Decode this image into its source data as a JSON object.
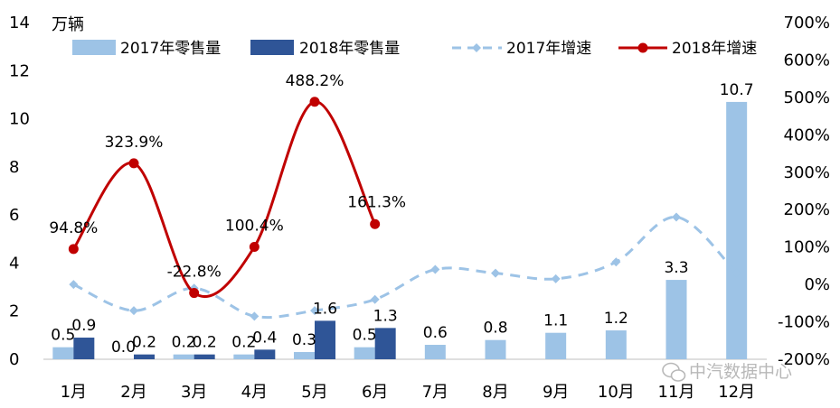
{
  "chart_data": {
    "type": "bar",
    "categories": [
      "1月",
      "2月",
      "3月",
      "4月",
      "5月",
      "6月",
      "7月",
      "8月",
      "9月",
      "10月",
      "11月",
      "12月"
    ],
    "unit_label": "万辆",
    "y_left": {
      "min": 0,
      "max": 14,
      "step": 2,
      "ticks": [
        "0",
        "2",
        "4",
        "6",
        "8",
        "10",
        "12",
        "14"
      ]
    },
    "y_right": {
      "min": -200,
      "max": 700,
      "step": 100,
      "ticks": [
        "-200%",
        "-100%",
        "0%",
        "100%",
        "200%",
        "300%",
        "400%",
        "500%",
        "600%",
        "700%"
      ]
    },
    "series": [
      {
        "name": "2017年零售量",
        "kind": "bar",
        "axis": "left",
        "color": "#9dc3e6",
        "values": [
          0.5,
          0.0,
          0.2,
          0.2,
          0.3,
          0.5,
          0.6,
          0.8,
          1.1,
          1.2,
          3.3,
          10.7
        ],
        "labels": [
          "0.5",
          "0.0",
          "0.2",
          "0.2",
          "0.3",
          "0.5",
          "0.6",
          "0.8",
          "1.1",
          "1.2",
          "3.3",
          "10.7"
        ]
      },
      {
        "name": "2018年零售量",
        "kind": "bar",
        "axis": "left",
        "color": "#2f5597",
        "values": [
          0.9,
          0.2,
          0.2,
          0.4,
          1.6,
          1.3,
          null,
          null,
          null,
          null,
          null,
          null
        ],
        "labels": [
          "0.9",
          "0.2",
          "0.2",
          "0.4",
          "1.6",
          "1.3",
          null,
          null,
          null,
          null,
          null,
          null
        ]
      },
      {
        "name": "2017年增速",
        "kind": "line",
        "axis": "right",
        "color": "#9dc3e6",
        "dashed": true,
        "values": [
          0,
          -70,
          -10,
          -85,
          -70,
          -40,
          40,
          30,
          15,
          60,
          180,
          30
        ]
      },
      {
        "name": "2018年增速",
        "kind": "line",
        "axis": "right",
        "color": "#c00000",
        "values": [
          94.8,
          323.9,
          -22.8,
          100.4,
          488.2,
          161.3,
          null,
          null,
          null,
          null,
          null,
          null
        ],
        "labels": [
          "94.8%",
          "323.9%",
          "-22.8%",
          "100.4%",
          "488.2%",
          "161.3%",
          null,
          null,
          null,
          null,
          null,
          null
        ]
      }
    ],
    "legend_position": "top",
    "grid": false
  },
  "watermark": "中汽数据中心"
}
